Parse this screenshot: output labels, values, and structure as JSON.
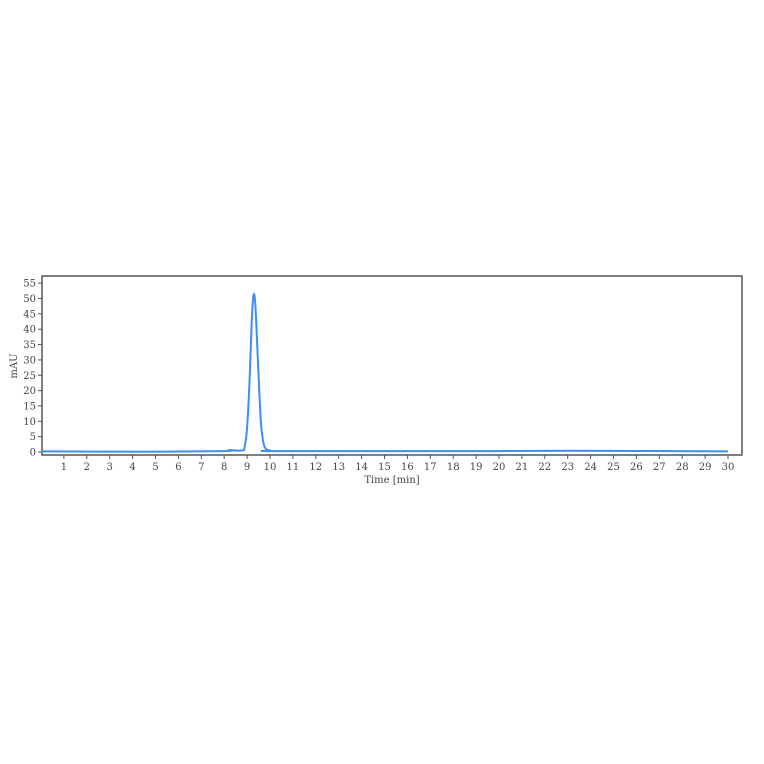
{
  "chart_data": {
    "type": "line",
    "title": "",
    "xlabel": "Time [min]",
    "ylabel": "mAU",
    "xlim": [
      0,
      30.6
    ],
    "ylim": [
      -1,
      57
    ],
    "xticks": [
      1,
      2,
      3,
      4,
      5,
      6,
      7,
      8,
      9,
      10,
      11,
      12,
      13,
      14,
      15,
      16,
      17,
      18,
      19,
      20,
      21,
      22,
      23,
      24,
      25,
      26,
      27,
      28,
      29,
      30
    ],
    "yticks": [
      0,
      5,
      10,
      15,
      20,
      25,
      30,
      35,
      40,
      45,
      50,
      55
    ],
    "grid": false,
    "line_color": "#3d8fef",
    "series": [
      {
        "x": [
          0,
          4,
          8,
          8.2,
          8.8,
          8.9,
          9.0,
          9.1,
          9.2,
          9.25,
          9.3,
          9.35,
          9.4,
          9.5,
          9.6,
          9.7,
          9.8,
          10.0,
          10.5,
          20,
          23.2,
          30
        ],
        "y": [
          0.2,
          0.1,
          0.3,
          0.6,
          0.5,
          2,
          8,
          22,
          42,
          49,
          51.5,
          49,
          42,
          25,
          10,
          3.5,
          1.2,
          0.5,
          0.3,
          0.3,
          0.4,
          0.2
        ]
      }
    ]
  }
}
